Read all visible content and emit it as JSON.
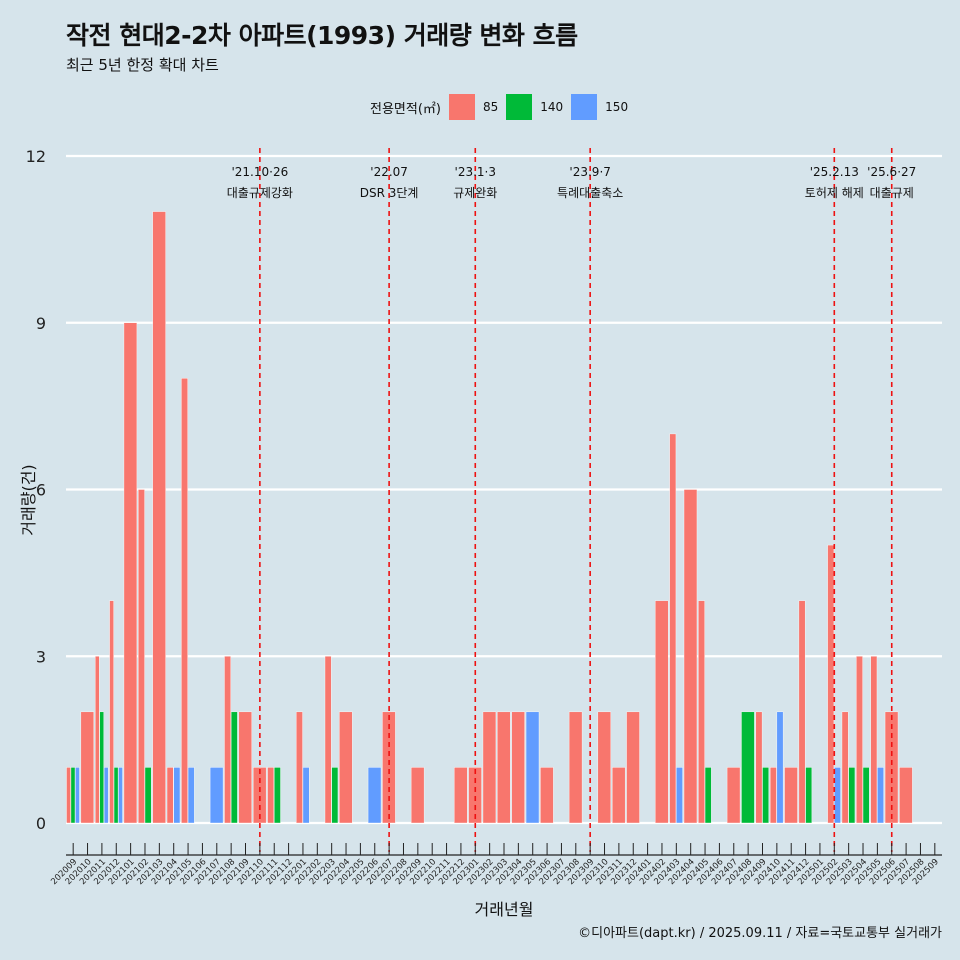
{
  "title": "작전 현대2-2차 아파트(1993) 거래량 변화 흐름",
  "subtitle": "최근 5년 한정 확대 차트",
  "caption": "©디아파트(dapt.kr) / 2025.09.11 / 자료=국토교통부 실거래가",
  "legend": {
    "title": "전용면적(㎡)",
    "items": [
      {
        "label": "85",
        "color": "#f8766d"
      },
      {
        "label": "140",
        "color": "#00ba38"
      },
      {
        "label": "150",
        "color": "#619cff"
      }
    ]
  },
  "chart_data": {
    "type": "bar",
    "xlabel": "거래년월",
    "ylabel": "거래량(건)",
    "ylim": [
      0,
      12
    ],
    "yticks": [
      0,
      3,
      6,
      9,
      12
    ],
    "grid": true,
    "legend_position": "top",
    "categories": [
      "202009",
      "202010",
      "202011",
      "202012",
      "202101",
      "202102",
      "202103",
      "202104",
      "202105",
      "202106",
      "202107",
      "202108",
      "202109",
      "202110",
      "202111",
      "202112",
      "202201",
      "202202",
      "202203",
      "202204",
      "202205",
      "202206",
      "202207",
      "202208",
      "202209",
      "202210",
      "202211",
      "202212",
      "202301",
      "202302",
      "202303",
      "202304",
      "202305",
      "202306",
      "202307",
      "202308",
      "202309",
      "202310",
      "202311",
      "202312",
      "202401",
      "202402",
      "202403",
      "202404",
      "202405",
      "202406",
      "202407",
      "202408",
      "202409",
      "202410",
      "202411",
      "202412",
      "202501",
      "202502",
      "202503",
      "202504",
      "202505",
      "202506",
      "202507",
      "202508",
      "202509"
    ],
    "series": [
      {
        "name": "85",
        "color": "#f8766d",
        "values": [
          1,
          2,
          3,
          4,
          9,
          6,
          11,
          1,
          8,
          0,
          0,
          3,
          2,
          1,
          1,
          0,
          2,
          0,
          3,
          2,
          0,
          0,
          2,
          0,
          1,
          0,
          0,
          1,
          1,
          2,
          2,
          2,
          0,
          1,
          0,
          2,
          0,
          2,
          1,
          2,
          0,
          4,
          7,
          6,
          4,
          0,
          1,
          0,
          2,
          1,
          1,
          4,
          0,
          5,
          2,
          3,
          3,
          2,
          1,
          0,
          0
        ]
      },
      {
        "name": "140",
        "color": "#00ba38",
        "values": [
          1,
          0,
          2,
          1,
          0,
          1,
          0,
          0,
          0,
          0,
          0,
          2,
          0,
          0,
          1,
          0,
          0,
          0,
          1,
          0,
          0,
          0,
          0,
          0,
          0,
          0,
          0,
          0,
          0,
          0,
          0,
          0,
          0,
          0,
          0,
          0,
          0,
          0,
          0,
          0,
          0,
          0,
          0,
          0,
          1,
          0,
          0,
          2,
          1,
          0,
          0,
          1,
          0,
          0,
          1,
          1,
          0,
          0,
          0,
          0,
          0
        ]
      },
      {
        "name": "150",
        "color": "#619cff",
        "values": [
          1,
          0,
          1,
          1,
          0,
          0,
          0,
          1,
          1,
          0,
          1,
          0,
          0,
          0,
          0,
          0,
          1,
          0,
          0,
          0,
          0,
          1,
          0,
          0,
          0,
          0,
          0,
          0,
          0,
          0,
          0,
          0,
          2,
          0,
          0,
          0,
          0,
          0,
          0,
          0,
          0,
          0,
          1,
          0,
          0,
          0,
          0,
          0,
          0,
          2,
          0,
          0,
          0,
          1,
          0,
          0,
          1,
          0,
          0,
          0,
          0
        ]
      }
    ],
    "annotations": [
      {
        "date_line1": "'21.10·26",
        "date_line2": "대출규제강화",
        "category": "202110"
      },
      {
        "date_line1": "'22.07",
        "date_line2": "DSR 3단계",
        "category": "202207"
      },
      {
        "date_line1": "'23.1·3",
        "date_line2": "규제완화",
        "category": "202301"
      },
      {
        "date_line1": "'23.9·7",
        "date_line2": "특례대출축소",
        "category": "202309"
      },
      {
        "date_line1": "'25.2.13",
        "date_line2": "토허제 해제",
        "category": "202502"
      },
      {
        "date_line1": "'25.6·27",
        "date_line2": "대출규제",
        "category": "202506"
      }
    ]
  }
}
